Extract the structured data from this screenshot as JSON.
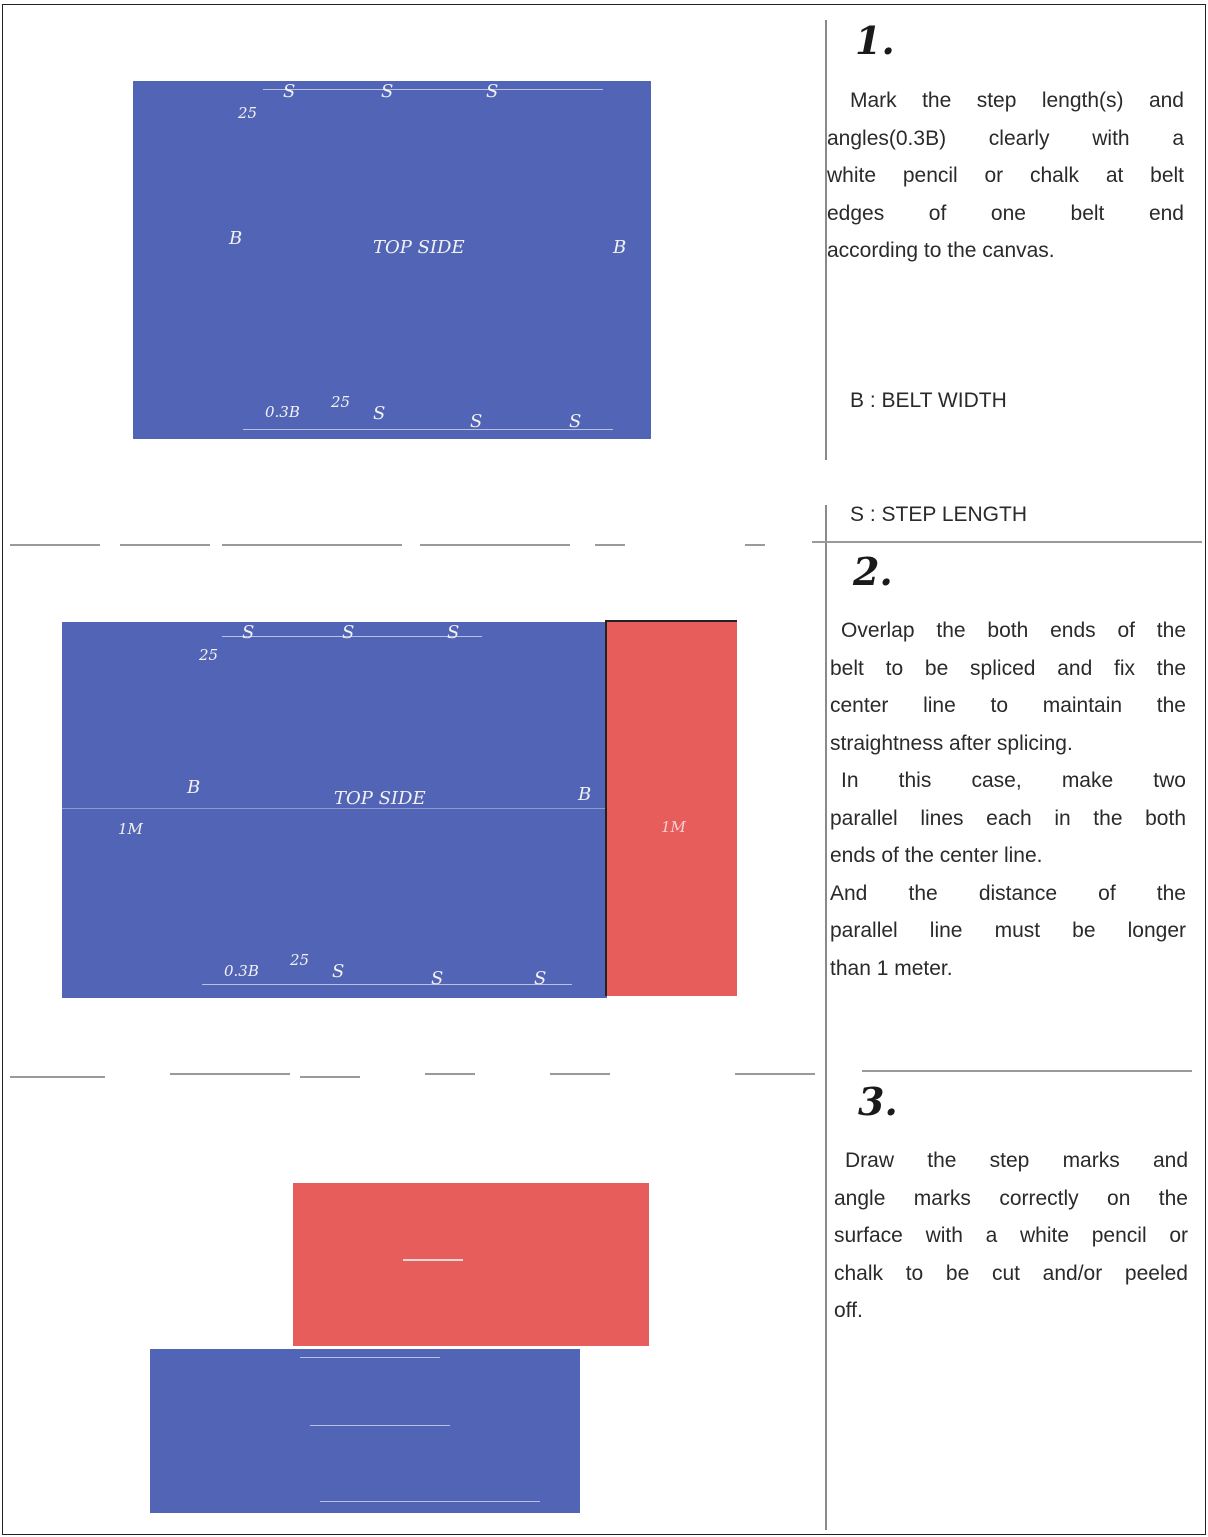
{
  "steps": [
    {
      "number": "1.",
      "lines": [
        "Mark the step length(s) and",
        "angles(0.3B) clearly with a",
        "white pencil or chalk at belt",
        "edges of one belt end",
        "according to the canvas."
      ],
      "legend": [
        "B : BELT WIDTH",
        "S : STEP LENGTH"
      ]
    },
    {
      "number": "2.",
      "lines": [
        "Overlap the both ends of the",
        "belt to be spliced and fix the",
        "center line to maintain the",
        "straightness after splicing.",
        "In this case, make two",
        "parallel lines each in the both",
        "ends of the center line.",
        "And the distance of the",
        "parallel line must be longer",
        "than 1 meter."
      ]
    },
    {
      "number": "3.",
      "lines": [
        "Draw the step marks and",
        "angle marks correctly on the",
        "surface with a white pencil or",
        "chalk to be cut and/or peeled",
        "off."
      ]
    }
  ],
  "diagram1": {
    "top_s": [
      "S",
      "S",
      "S"
    ],
    "top_25": "25",
    "b_left": "B",
    "b_right": "B",
    "center": "TOP SIDE",
    "bottom_03b": "0.3B",
    "bottom_25": "25",
    "bottom_s": [
      "S",
      "S",
      "S"
    ]
  },
  "diagram2": {
    "top_s": [
      "S",
      "S",
      "S"
    ],
    "top_25": "25",
    "b_left": "B",
    "b_right": "B",
    "center": "TOP SIDE",
    "m_left": "1M",
    "m_right": "1M",
    "bottom_03b": "0.3B",
    "bottom_25": "25",
    "bottom_s": [
      "S",
      "S",
      "S"
    ]
  },
  "colors": {
    "belt_blue": "#5264b6",
    "belt_red": "#e65d5c"
  }
}
